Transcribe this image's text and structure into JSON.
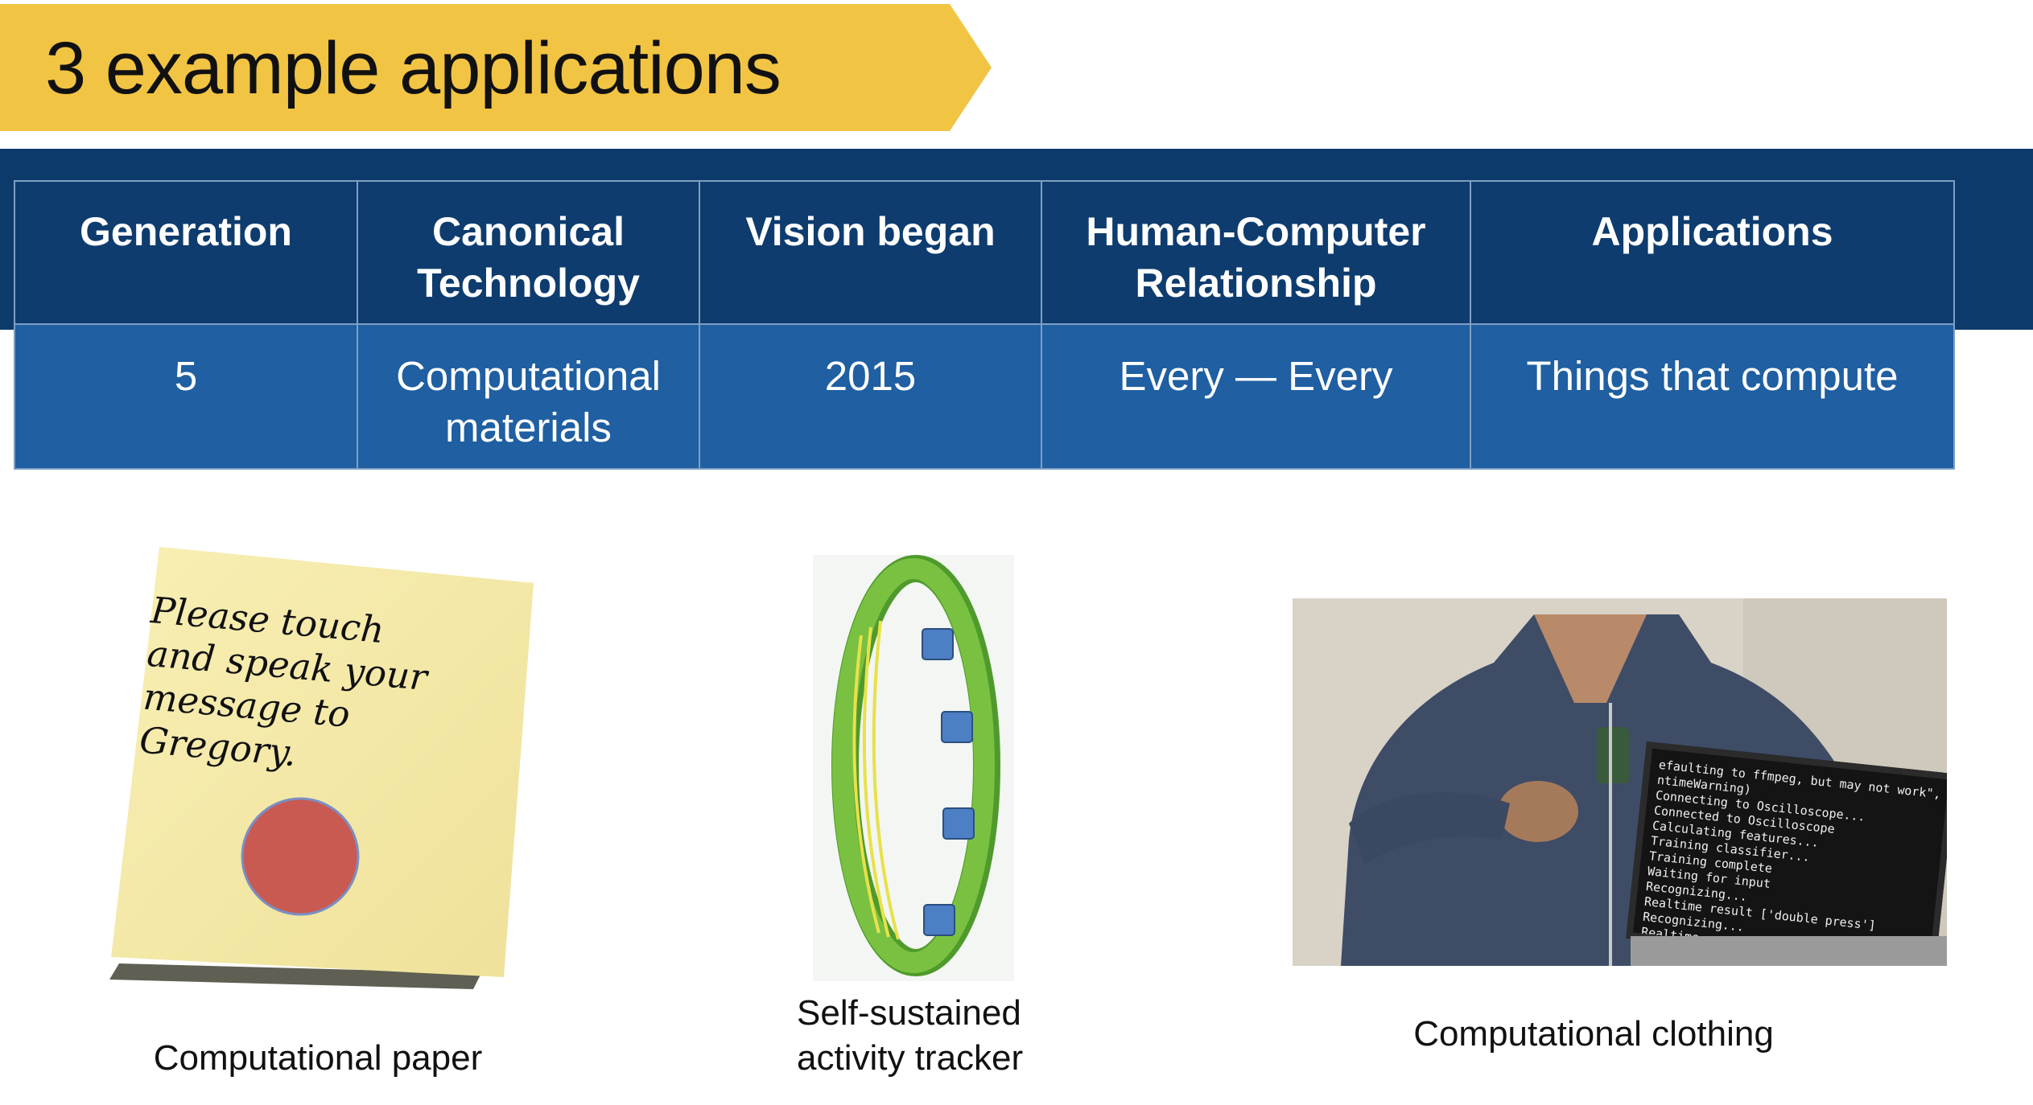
{
  "slide": {
    "title": "3 example applications"
  },
  "table": {
    "headers": [
      "Generation",
      "Canonical\nTechnology",
      "Vision began",
      "Human-Computer\nRelationship",
      "Applications"
    ],
    "rows": [
      [
        "5",
        "Computational\nmaterials",
        "2015",
        "Every — Every",
        "Things that compute"
      ]
    ]
  },
  "figures": {
    "paper": {
      "note_text": "Please touch\nand speak your\nmessage to\nGregory.",
      "caption": "Computational paper"
    },
    "tracker": {
      "caption": "Self-sustained\nactivity tracker"
    },
    "clothing": {
      "terminal_text": "efaulting to ffmpeg, but may not work\", Ru\nntimeWarning)\nConnecting to Oscilloscope...\nConnected to Oscilloscope\nCalculating features...\nTraining classifier...\nTraining complete\nWaiting for input\nRecognizing...\nRealtime result ['double press']\nRecognizing...\nRealtime result ['rotate']",
      "caption": "Computational clothing"
    }
  },
  "colors": {
    "banner": "#f2c443",
    "header_band": "#0c3a6b",
    "row_blue": "#1f5fa2",
    "note_yellow": "#f6eaa2",
    "button_red": "#c85a52",
    "band_green": "#7ac142"
  }
}
